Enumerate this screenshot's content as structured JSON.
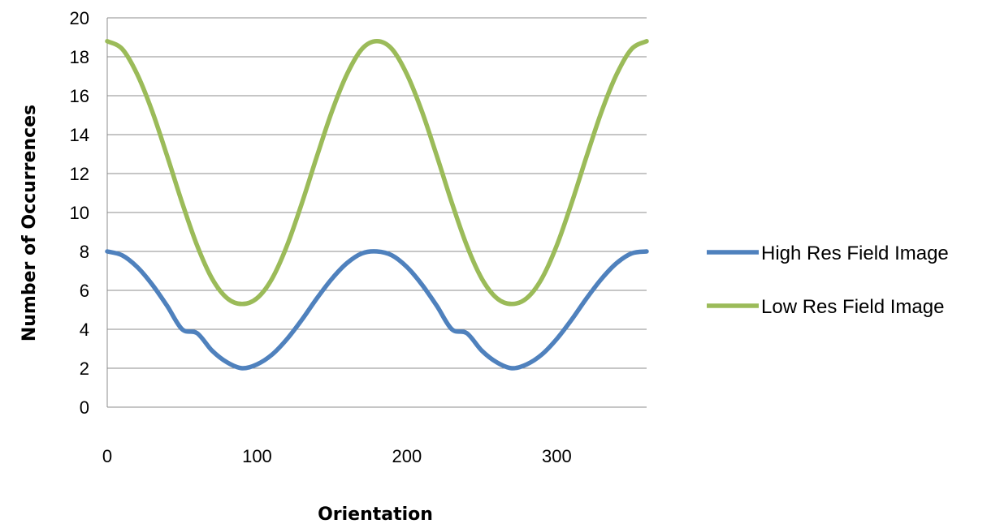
{
  "chart_data": {
    "type": "line",
    "title": "",
    "xlabel": "Orientation",
    "ylabel": "Number of Occurrences",
    "xlim": [
      0,
      360
    ],
    "ylim": [
      0,
      20
    ],
    "x_ticks": [
      0,
      100,
      200,
      300
    ],
    "y_ticks": [
      0,
      2,
      4,
      6,
      8,
      10,
      12,
      14,
      16,
      18,
      20
    ],
    "grid": "horizontal",
    "legend_position": "right",
    "x": [
      0,
      10,
      20,
      30,
      40,
      50,
      60,
      70,
      80,
      90,
      100,
      110,
      120,
      130,
      140,
      150,
      160,
      170,
      180,
      190,
      200,
      210,
      220,
      230,
      240,
      250,
      260,
      270,
      280,
      290,
      300,
      310,
      320,
      330,
      340,
      350,
      360
    ],
    "series": [
      {
        "name": "High Res Field Image",
        "color": "#4F81BD",
        "values": [
          8.0,
          7.8,
          7.2,
          6.3,
          5.2,
          4.0,
          3.8,
          2.9,
          2.3,
          2.0,
          2.2,
          2.7,
          3.5,
          4.5,
          5.6,
          6.6,
          7.4,
          7.9,
          8.0,
          7.8,
          7.2,
          6.3,
          5.2,
          4.0,
          3.8,
          2.9,
          2.3,
          2.0,
          2.2,
          2.7,
          3.5,
          4.5,
          5.6,
          6.6,
          7.4,
          7.9,
          8.0
        ]
      },
      {
        "name": "Low Res Field Image",
        "color": "#9BBB59",
        "values": [
          18.8,
          18.4,
          17.1,
          15.2,
          12.9,
          10.5,
          8.3,
          6.6,
          5.6,
          5.3,
          5.6,
          6.6,
          8.3,
          10.5,
          12.9,
          15.2,
          17.1,
          18.4,
          18.8,
          18.4,
          17.1,
          15.2,
          12.9,
          10.5,
          8.3,
          6.6,
          5.6,
          5.3,
          5.6,
          6.6,
          8.3,
          10.5,
          12.9,
          15.2,
          17.1,
          18.4,
          18.8
        ]
      }
    ]
  }
}
